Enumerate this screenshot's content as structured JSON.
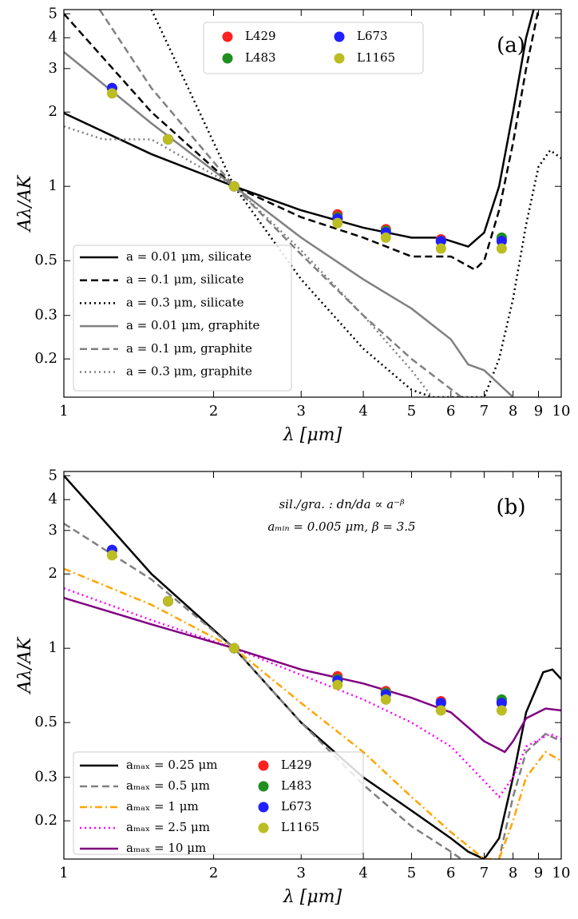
{
  "chart_data": [
    {
      "type": "line",
      "panel_label": "(a)",
      "xlabel": "λ [μm]",
      "ylabel": "Aλ/AK",
      "log_x": true,
      "log_y": true,
      "xlim": [
        1,
        10
      ],
      "xticks": [
        1,
        2,
        3,
        4,
        5,
        6,
        7,
        8,
        9,
        10
      ],
      "ylim": [
        0.14,
        5.2
      ],
      "yticks": [
        0.2,
        0.3,
        0.5,
        1,
        2,
        3,
        4,
        5
      ],
      "legend": "lower left",
      "marker_legend": "upper center",
      "series": [
        {
          "name": "a = 0.01 μm, silicate",
          "color": "#000000",
          "dash": "solid",
          "style": "line",
          "x": [
            1,
            1.5,
            2.2,
            3,
            4,
            5,
            5.7,
            6.5,
            7,
            7.5,
            8,
            8.5,
            8.8
          ],
          "values": [
            1.98,
            1.35,
            1,
            0.8,
            0.68,
            0.62,
            0.62,
            0.57,
            0.65,
            1,
            2,
            4,
            5.2
          ]
        },
        {
          "name": "a = 0.1 μm, silicate",
          "color": "#000000",
          "dash": "dashed",
          "style": "line",
          "x": [
            1,
            1.5,
            2.2,
            3,
            4,
            5,
            6,
            6.7,
            7,
            7.5,
            8,
            8.5,
            9
          ],
          "values": [
            5,
            2,
            1,
            0.75,
            0.62,
            0.52,
            0.52,
            0.46,
            0.5,
            0.8,
            1.5,
            3,
            5.2
          ]
        },
        {
          "name": "a = 0.3 μm, silicate",
          "color": "#000000",
          "dash": "dotted",
          "style": "line",
          "x": [
            1.5,
            2.2,
            3,
            4,
            5,
            5.5,
            7,
            7.5,
            8,
            8.5,
            9,
            9.5,
            10
          ],
          "values": [
            5.2,
            1,
            0.42,
            0.22,
            0.15,
            0.14,
            0.14,
            0.2,
            0.35,
            0.7,
            1.2,
            1.4,
            1.3
          ]
        },
        {
          "name": "a = 0.01 μm, graphite",
          "color": "#808080",
          "dash": "solid",
          "style": "line",
          "x": [
            1,
            1.5,
            2.2,
            3,
            4,
            5,
            6,
            6.5,
            7,
            8
          ],
          "values": [
            3.5,
            1.8,
            1,
            0.62,
            0.42,
            0.32,
            0.24,
            0.19,
            0.18,
            0.14
          ]
        },
        {
          "name": "a = 0.1 μm, graphite",
          "color": "#808080",
          "dash": "dashed",
          "style": "line",
          "x": [
            1.18,
            1.5,
            2.2,
            3,
            4,
            5,
            6.3
          ],
          "values": [
            5.2,
            2.5,
            1,
            0.53,
            0.3,
            0.2,
            0.14
          ]
        },
        {
          "name": "a = 0.3 μm, graphite",
          "color": "#808080",
          "dash": "dotted",
          "style": "line",
          "x": [
            1,
            1.2,
            1.5,
            2.2,
            3,
            4,
            5,
            5.5
          ],
          "values": [
            1.75,
            1.55,
            1.55,
            1,
            0.55,
            0.3,
            0.18,
            0.14
          ]
        },
        {
          "name": "L429",
          "color": "#ff2020",
          "style": "marker",
          "x": [
            1.25,
            1.62,
            2.2,
            3.55,
            4.44,
            5.73,
            7.59
          ],
          "values": [
            2.5,
            1.55,
            1,
            0.77,
            0.67,
            0.61,
            0.61
          ]
        },
        {
          "name": "L483",
          "color": "#1f8f1f",
          "style": "marker",
          "x": [
            1.25,
            1.62,
            2.2,
            3.55,
            4.44,
            5.73,
            7.59
          ],
          "values": [
            2.5,
            1.55,
            1,
            0.75,
            0.66,
            0.6,
            0.62
          ]
        },
        {
          "name": "L673",
          "color": "#2020ff",
          "style": "marker",
          "x": [
            1.25,
            1.62,
            2.2,
            3.55,
            4.44,
            5.73,
            7.59
          ],
          "values": [
            2.5,
            1.55,
            1,
            0.74,
            0.65,
            0.6,
            0.6
          ]
        },
        {
          "name": "L1165",
          "color": "#bcbd22",
          "style": "marker",
          "x": [
            1.25,
            1.62,
            2.2,
            3.55,
            4.44,
            5.73,
            7.59
          ],
          "values": [
            2.38,
            1.55,
            1,
            0.71,
            0.62,
            0.56,
            0.56
          ]
        }
      ]
    },
    {
      "type": "line",
      "panel_label": "(b)",
      "xlabel": "λ [μm]",
      "ylabel": "Aλ/AK",
      "annotations": [
        "sil./gra. : dn/da ∝ a⁻ᵝ",
        "aₘᵢₙ = 0.005 μm, β = 3.5"
      ],
      "log_x": true,
      "log_y": true,
      "xlim": [
        1,
        10
      ],
      "xticks": [
        1,
        2,
        3,
        4,
        5,
        6,
        7,
        8,
        9,
        10
      ],
      "ylim": [
        0.14,
        5.2
      ],
      "yticks": [
        0.2,
        0.3,
        0.5,
        1,
        2,
        3,
        4,
        5
      ],
      "legend": "lower left",
      "series": [
        {
          "name": "aₘₐₓ = 0.25 μm",
          "color": "#000000",
          "dash": "solid",
          "style": "line",
          "x": [
            1,
            1.5,
            2.2,
            3,
            4,
            5,
            6,
            6.5,
            7,
            7.5,
            8,
            8.5,
            9.2,
            9.6,
            10
          ],
          "values": [
            5,
            2,
            1,
            0.5,
            0.3,
            0.22,
            0.17,
            0.15,
            0.14,
            0.17,
            0.3,
            0.55,
            0.8,
            0.82,
            0.75
          ]
        },
        {
          "name": "aₘₐₓ = 0.5 μm",
          "color": "#808080",
          "dash": "dashed",
          "style": "line",
          "x": [
            1,
            1.5,
            2.2,
            3,
            4,
            5,
            6,
            7,
            7.5,
            8,
            8.5,
            9.3,
            10
          ],
          "values": [
            3.2,
            1.9,
            1,
            0.5,
            0.28,
            0.19,
            0.15,
            0.12,
            0.14,
            0.25,
            0.38,
            0.45,
            0.42
          ]
        },
        {
          "name": "aₘₐₓ = 1 μm",
          "color": "#ffa500",
          "dash": "dashdot",
          "style": "line",
          "x": [
            1,
            1.5,
            2.2,
            3,
            4,
            5,
            6,
            7,
            7.5,
            8,
            8.5,
            9.3,
            10
          ],
          "values": [
            2.1,
            1.5,
            1,
            0.6,
            0.38,
            0.25,
            0.18,
            0.14,
            0.14,
            0.2,
            0.3,
            0.38,
            0.35
          ]
        },
        {
          "name": "aₘₐₓ = 2.5 μm",
          "color": "#ff00ff",
          "dash": "dotted",
          "style": "line",
          "x": [
            1,
            1.5,
            2.2,
            3,
            4,
            5,
            6,
            7,
            7.5,
            8,
            8.5,
            9.5,
            10
          ],
          "values": [
            1.75,
            1.3,
            1,
            0.78,
            0.62,
            0.5,
            0.4,
            0.29,
            0.25,
            0.3,
            0.4,
            0.45,
            0.43
          ]
        },
        {
          "name": "aₘₐₓ = 10 μm",
          "color": "#800080",
          "dash": "solid",
          "style": "line",
          "x": [
            1,
            1.5,
            2.2,
            3,
            4,
            5,
            6,
            7,
            7.7,
            8,
            8.5,
            9.3,
            10
          ],
          "values": [
            1.6,
            1.25,
            1,
            0.82,
            0.72,
            0.63,
            0.55,
            0.42,
            0.38,
            0.42,
            0.52,
            0.57,
            0.56
          ]
        },
        {
          "name": "L429",
          "color": "#ff2020",
          "style": "marker",
          "x": [
            1.25,
            1.62,
            2.2,
            3.55,
            4.44,
            5.73,
            7.59
          ],
          "values": [
            2.5,
            1.55,
            1,
            0.77,
            0.67,
            0.61,
            0.61
          ]
        },
        {
          "name": "L483",
          "color": "#1f8f1f",
          "style": "marker",
          "x": [
            1.25,
            1.62,
            2.2,
            3.55,
            4.44,
            5.73,
            7.59
          ],
          "values": [
            2.5,
            1.55,
            1,
            0.75,
            0.66,
            0.6,
            0.62
          ]
        },
        {
          "name": "L673",
          "color": "#2020ff",
          "style": "marker",
          "x": [
            1.25,
            1.62,
            2.2,
            3.55,
            4.44,
            5.73,
            7.59
          ],
          "values": [
            2.5,
            1.55,
            1,
            0.74,
            0.65,
            0.6,
            0.6
          ]
        },
        {
          "name": "L1165",
          "color": "#bcbd22",
          "style": "marker",
          "x": [
            1.25,
            1.62,
            2.2,
            3.55,
            4.44,
            5.73,
            7.59
          ],
          "values": [
            2.38,
            1.55,
            1,
            0.71,
            0.62,
            0.56,
            0.56
          ]
        }
      ]
    }
  ]
}
